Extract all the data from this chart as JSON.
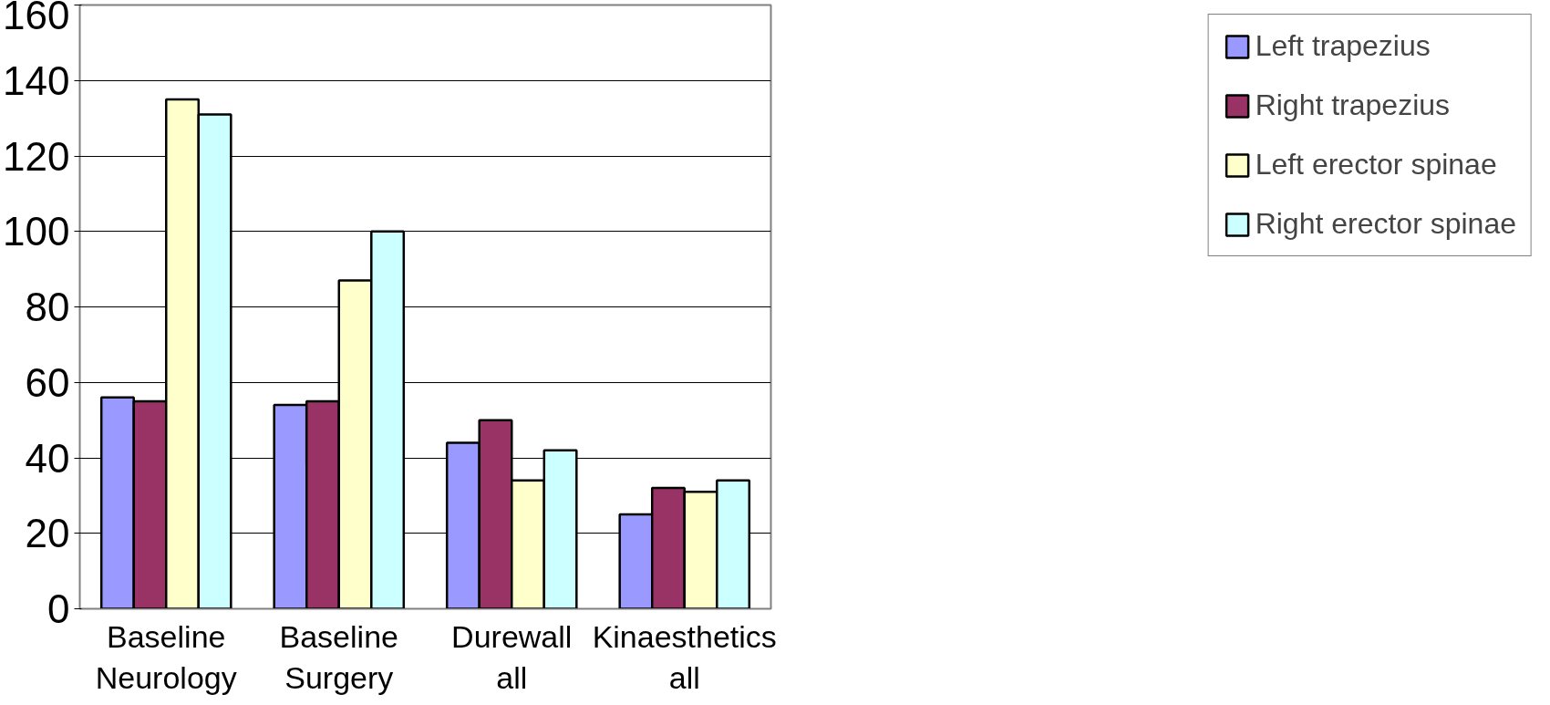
{
  "chart_data": {
    "type": "bar",
    "categories": [
      "Baseline\nNeurology",
      "Baseline\nSurgery",
      "Durewall\nall",
      "Kinaesthetics\nall"
    ],
    "series": [
      {
        "name": "Left trapezius",
        "color": "#9999ff",
        "values": [
          56,
          54,
          44,
          25
        ]
      },
      {
        "name": "Right trapezius",
        "color": "#993366",
        "values": [
          55,
          55,
          50,
          32
        ]
      },
      {
        "name": "Left erector spinae",
        "color": "#ffffcc",
        "values": [
          135,
          87,
          34,
          31
        ]
      },
      {
        "name": "Right erector spinae",
        "color": "#ccffff",
        "values": [
          131,
          100,
          42,
          34
        ]
      }
    ],
    "ylim": [
      0,
      160
    ],
    "yticks": [
      0,
      20,
      40,
      60,
      80,
      100,
      120,
      140,
      160
    ],
    "grid": "y",
    "legend": "right"
  }
}
